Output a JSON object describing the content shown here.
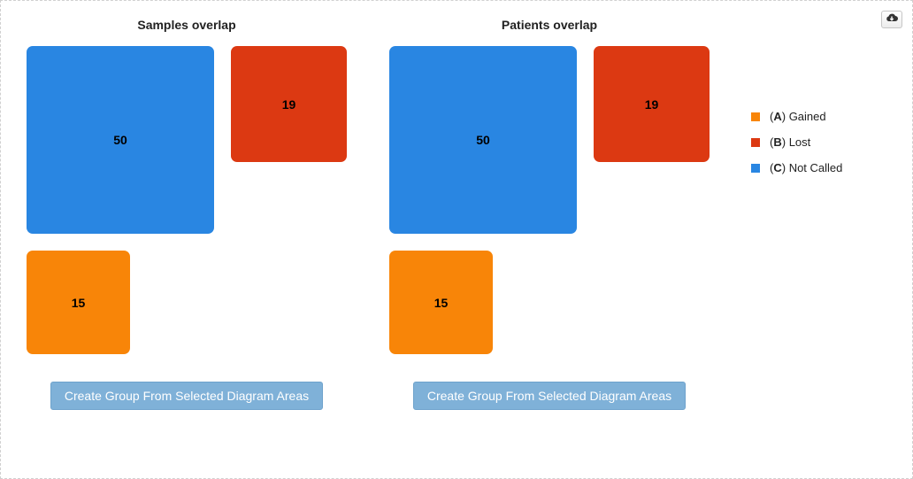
{
  "panels": [
    {
      "title": "Samples overlap",
      "regions": {
        "C": "50",
        "B": "19",
        "A": "15"
      },
      "button_label": "Create Group From Selected Diagram Areas"
    },
    {
      "title": "Patients overlap",
      "regions": {
        "C": "50",
        "B": "19",
        "A": "15"
      },
      "button_label": "Create Group From Selected Diagram Areas"
    }
  ],
  "legend": [
    {
      "letter": "A",
      "label": "Gained",
      "color": "#f88508"
    },
    {
      "letter": "B",
      "label": "Lost",
      "color": "#dc3912"
    },
    {
      "letter": "C",
      "label": "Not Called",
      "color": "#2986e2"
    }
  ],
  "icons": {
    "download": "cloud-download-icon"
  }
}
